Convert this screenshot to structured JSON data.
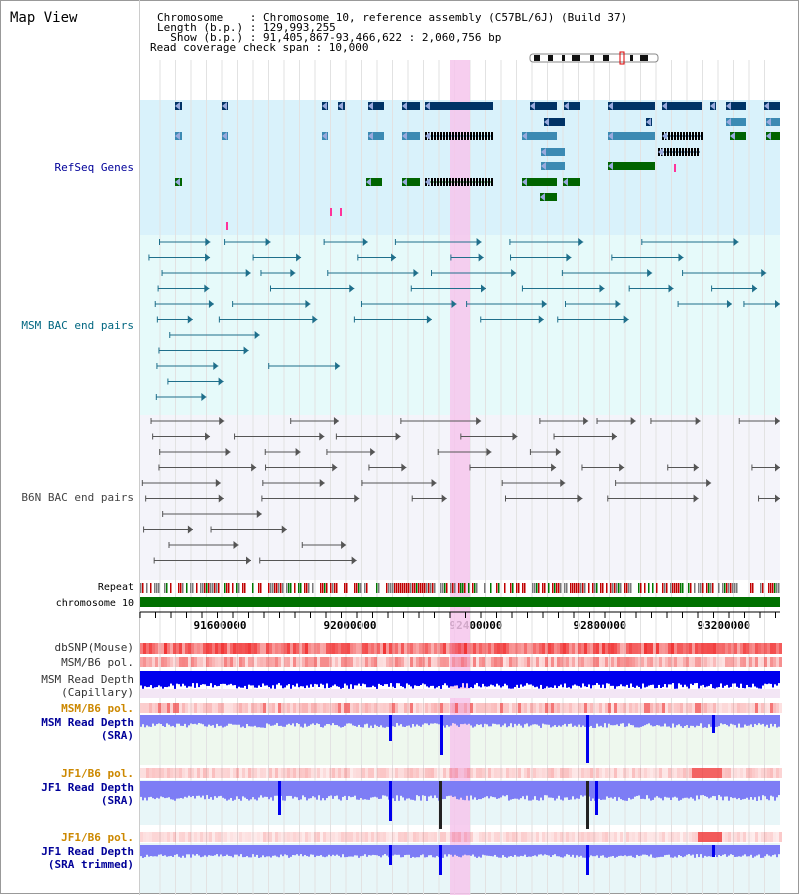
{
  "title": "Map View",
  "header": {
    "chromosome": "Chromosome    : Chromosome 10, reference assembly (C57BL/6J) (Build 37)",
    "length": "Length (b.p.) : 129,993,255",
    "show": "  Show (b.p.) : 91,405,867-93,466,622 : 2,060,756 bp",
    "span": "Read coverage check span : 10,000"
  },
  "tracks": {
    "refseq": "RefSeq Genes",
    "msm_bac": "MSM BAC end pairs",
    "b6n_bac": "B6N BAC end pairs",
    "repeat": "Repeat",
    "chromosome": "chromosome 10",
    "dbsnp": "dbSNP(Mouse)",
    "msm_b6_pol": "MSM/B6 pol.",
    "msm_depth_cap_1": "MSM Read Depth",
    "msm_depth_cap_2": "(Capillary)",
    "msm_b6_pol2": "MSM/B6 pol.",
    "msm_depth_sra_1": "MSM Read Depth",
    "msm_depth_sra_2": "(SRA)",
    "jf1_b6_pol": "JF1/B6 pol.",
    "jf1_depth_sra_1": "JF1 Read Depth",
    "jf1_depth_sra_2": "(SRA)",
    "jf1_b6_pol2": "JF1/B6 pol.",
    "jf1_depth_trim_1": "JF1 Read Depth",
    "jf1_depth_trim_2": "(SRA trimmed)"
  },
  "ruler": [
    "91600000",
    "92000000",
    "92400000",
    "92800000",
    "93200000"
  ],
  "colors": {
    "refseq_bg": "#d9f2fb",
    "msm_bg": "#e6fafa",
    "b6n_bg": "#f4f4fa",
    "highlight": "#f6c6ec",
    "gene_dark": "#003366",
    "gene_mid": "#3b8ab3",
    "gene_green": "#006400",
    "msm_line": "#1f6f8b",
    "b6n_line": "#555555",
    "chrom_green": "#007000",
    "depth_blue": "#0000ee",
    "depth_light": "#7d7df5",
    "label_navy": "#000099",
    "label_orange": "#cc8800",
    "label_teal": "#006680"
  }
}
